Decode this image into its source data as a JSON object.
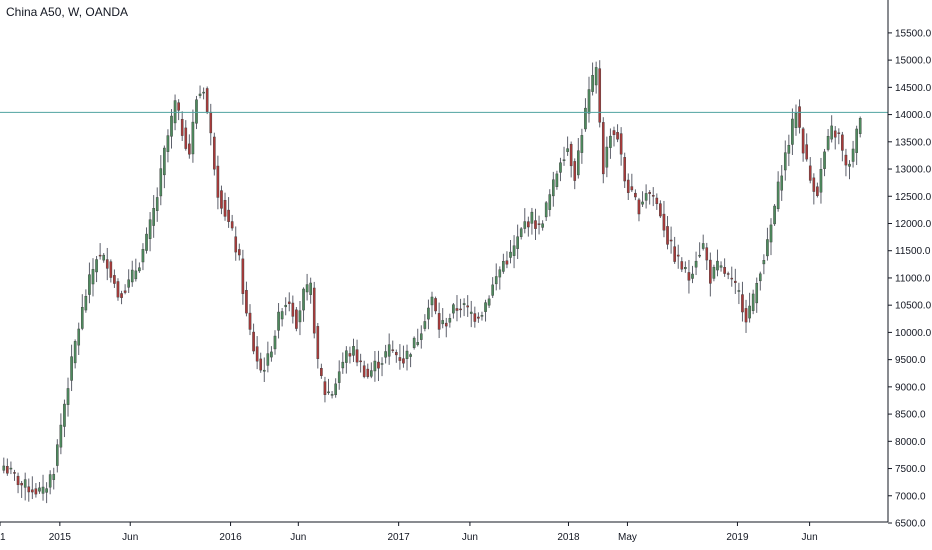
{
  "symbol_title": "China A50, W, OANDA",
  "chart_data": {
    "type": "candlestick",
    "title": "China A50, W, OANDA",
    "interval": "W",
    "y_range": [
      6500,
      15700
    ],
    "y_ticks": [
      "6500.0",
      "7000.0",
      "7500.0",
      "8000.0",
      "8500.0",
      "9000.0",
      "9500.0",
      "10000.0",
      "10500.0",
      "11000.0",
      "11500.0",
      "12000.0",
      "12500.0",
      "13000.0",
      "13500.0",
      "14000.0",
      "14500.0",
      "15000.0",
      "15500.0"
    ],
    "x_ticks": [
      {
        "label": "1",
        "t": 0
      },
      {
        "label": "2015",
        "t": 0.068
      },
      {
        "label": "Jun",
        "t": 0.148
      },
      {
        "label": "2016",
        "t": 0.262
      },
      {
        "label": "Jun",
        "t": 0.339
      },
      {
        "label": "2017",
        "t": 0.453
      },
      {
        "label": "Jun",
        "t": 0.534
      },
      {
        "label": "2018",
        "t": 0.646
      },
      {
        "label": "May",
        "t": 0.713
      },
      {
        "label": "2019",
        "t": 0.838
      },
      {
        "label": "Jun",
        "t": 0.92
      }
    ],
    "reference_line": 14040,
    "up_color": "#4e8a5e",
    "down_color": "#a83a3a",
    "grid": false,
    "anchors": [
      [
        0,
        7550
      ],
      [
        5,
        7200
      ],
      [
        9,
        7100
      ],
      [
        11,
        7050
      ],
      [
        14,
        7500
      ],
      [
        17,
        8700
      ],
      [
        20,
        9800
      ],
      [
        23,
        10700
      ],
      [
        26,
        11400
      ],
      [
        29,
        11300
      ],
      [
        32,
        10700
      ],
      [
        35,
        10900
      ],
      [
        38,
        11300
      ],
      [
        40,
        11700
      ],
      [
        43,
        12500
      ],
      [
        45,
        13300
      ],
      [
        48,
        14200
      ],
      [
        50,
        13700
      ],
      [
        52,
        13300
      ],
      [
        54,
        14300
      ],
      [
        56,
        14500
      ],
      [
        58,
        13600
      ],
      [
        60,
        12600
      ],
      [
        62,
        12200
      ],
      [
        64,
        11800
      ],
      [
        66,
        11300
      ],
      [
        68,
        10300
      ],
      [
        70,
        9700
      ],
      [
        72,
        9300
      ],
      [
        74,
        9500
      ],
      [
        76,
        10000
      ],
      [
        78,
        10500
      ],
      [
        80,
        10600
      ],
      [
        82,
        10200
      ],
      [
        84,
        10700
      ],
      [
        86,
        10800
      ],
      [
        88,
        9400
      ],
      [
        90,
        8900
      ],
      [
        92,
        8900
      ],
      [
        94,
        9300
      ],
      [
        96,
        9600
      ],
      [
        98,
        9650
      ],
      [
        100,
        9400
      ],
      [
        102,
        9200
      ],
      [
        104,
        9400
      ],
      [
        106,
        9500
      ],
      [
        108,
        9700
      ],
      [
        110,
        9600
      ],
      [
        112,
        9500
      ],
      [
        114,
        9700
      ],
      [
        116,
        9900
      ],
      [
        118,
        10300
      ],
      [
        120,
        10600
      ],
      [
        122,
        10100
      ],
      [
        124,
        10200
      ],
      [
        126,
        10400
      ],
      [
        128,
        10500
      ],
      [
        130,
        10400
      ],
      [
        132,
        10300
      ],
      [
        134,
        10400
      ],
      [
        136,
        10700
      ],
      [
        138,
        11000
      ],
      [
        140,
        11300
      ],
      [
        142,
        11400
      ],
      [
        144,
        11700
      ],
      [
        146,
        12000
      ],
      [
        148,
        12100
      ],
      [
        150,
        11900
      ],
      [
        152,
        12300
      ],
      [
        154,
        12700
      ],
      [
        156,
        13200
      ],
      [
        158,
        13400
      ],
      [
        160,
        12900
      ],
      [
        162,
        13700
      ],
      [
        164,
        14400
      ],
      [
        166,
        14800
      ],
      [
        168,
        13000
      ],
      [
        170,
        13700
      ],
      [
        172,
        13600
      ],
      [
        174,
        12800
      ],
      [
        176,
        12500
      ],
      [
        178,
        12300
      ],
      [
        180,
        12600
      ],
      [
        182,
        12500
      ],
      [
        184,
        12200
      ],
      [
        186,
        11700
      ],
      [
        188,
        11400
      ],
      [
        190,
        11200
      ],
      [
        192,
        11000
      ],
      [
        194,
        11400
      ],
      [
        196,
        11600
      ],
      [
        198,
        11000
      ],
      [
        200,
        11200
      ],
      [
        202,
        11100
      ],
      [
        204,
        10900
      ],
      [
        206,
        10700
      ],
      [
        208,
        10300
      ],
      [
        210,
        10600
      ],
      [
        212,
        11200
      ],
      [
        214,
        11600
      ],
      [
        216,
        12300
      ],
      [
        218,
        13000
      ],
      [
        220,
        13500
      ],
      [
        222,
        14100
      ],
      [
        224,
        13400
      ],
      [
        226,
        12800
      ],
      [
        228,
        12600
      ],
      [
        230,
        13300
      ],
      [
        232,
        13700
      ],
      [
        234,
        13600
      ],
      [
        236,
        13000
      ],
      [
        238,
        13300
      ],
      [
        240,
        14000
      ]
    ]
  }
}
